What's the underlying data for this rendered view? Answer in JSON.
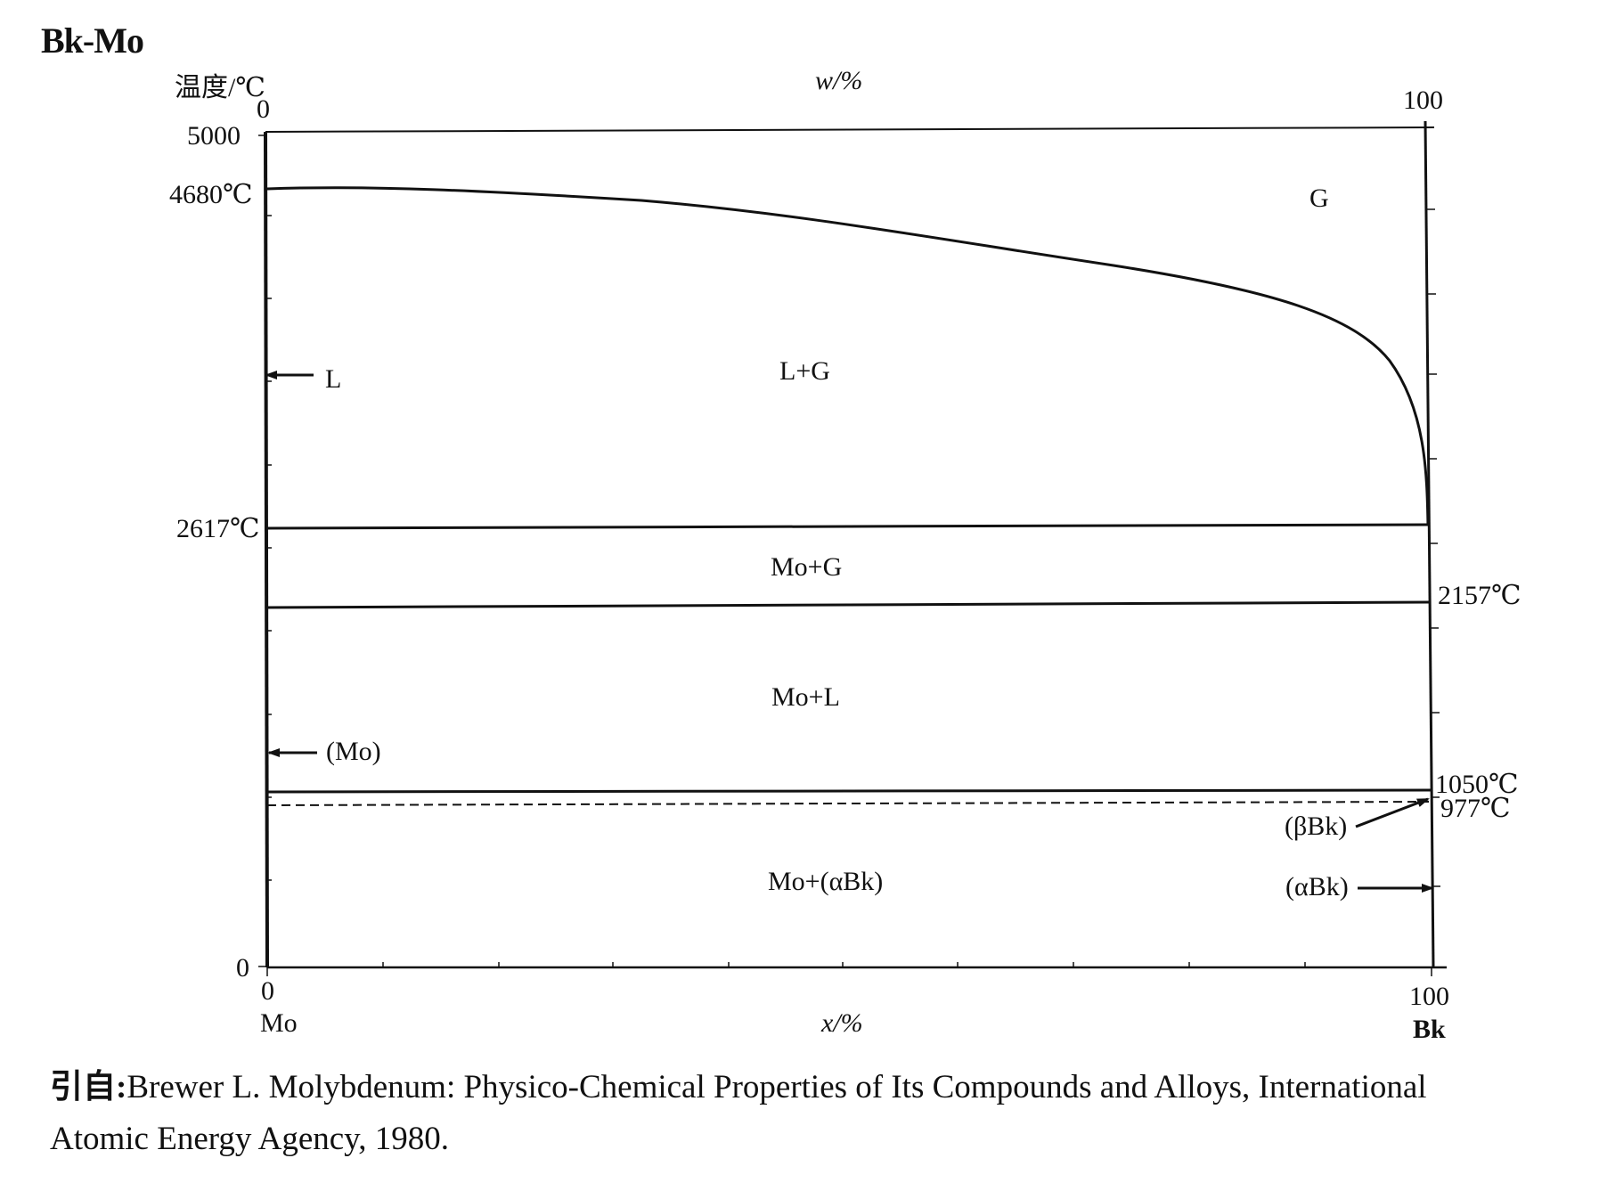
{
  "title": "Bk-Mo",
  "y_axis": {
    "label": "温度/℃",
    "ticks": [
      "5000",
      "0"
    ],
    "special_labels": {
      "left_4680": "4680℃",
      "left_2617": "2617℃",
      "right_2157": "2157℃",
      "right_1050": "1050℃",
      "right_977": "977℃"
    }
  },
  "top_axis": {
    "label": "w/%",
    "left_value": "0",
    "right_value": "100"
  },
  "bottom_axis": {
    "label": "x/%",
    "left_value": "0",
    "right_value": "100",
    "left_element": "Mo",
    "right_element": "Bk"
  },
  "regions": {
    "G": "G",
    "L_G": "L+G",
    "Mo_G": "Mo+G",
    "Mo_L": "Mo+L",
    "Mo_aBk": "Mo+(αBk)"
  },
  "arrow_labels": {
    "L": "L",
    "Mo_phase": "(Mo)",
    "beta_Bk": "(βBk)",
    "alpha_Bk": "(αBk)"
  },
  "source": {
    "prefix": "引自:",
    "line1": "Brewer L. Molybdenum: Physico-Chemical Properties of Its Compounds and Alloys, International",
    "line2": "Atomic Energy Agency, 1980."
  },
  "colors": {
    "line": "#111111",
    "background": "#ffffff"
  }
}
